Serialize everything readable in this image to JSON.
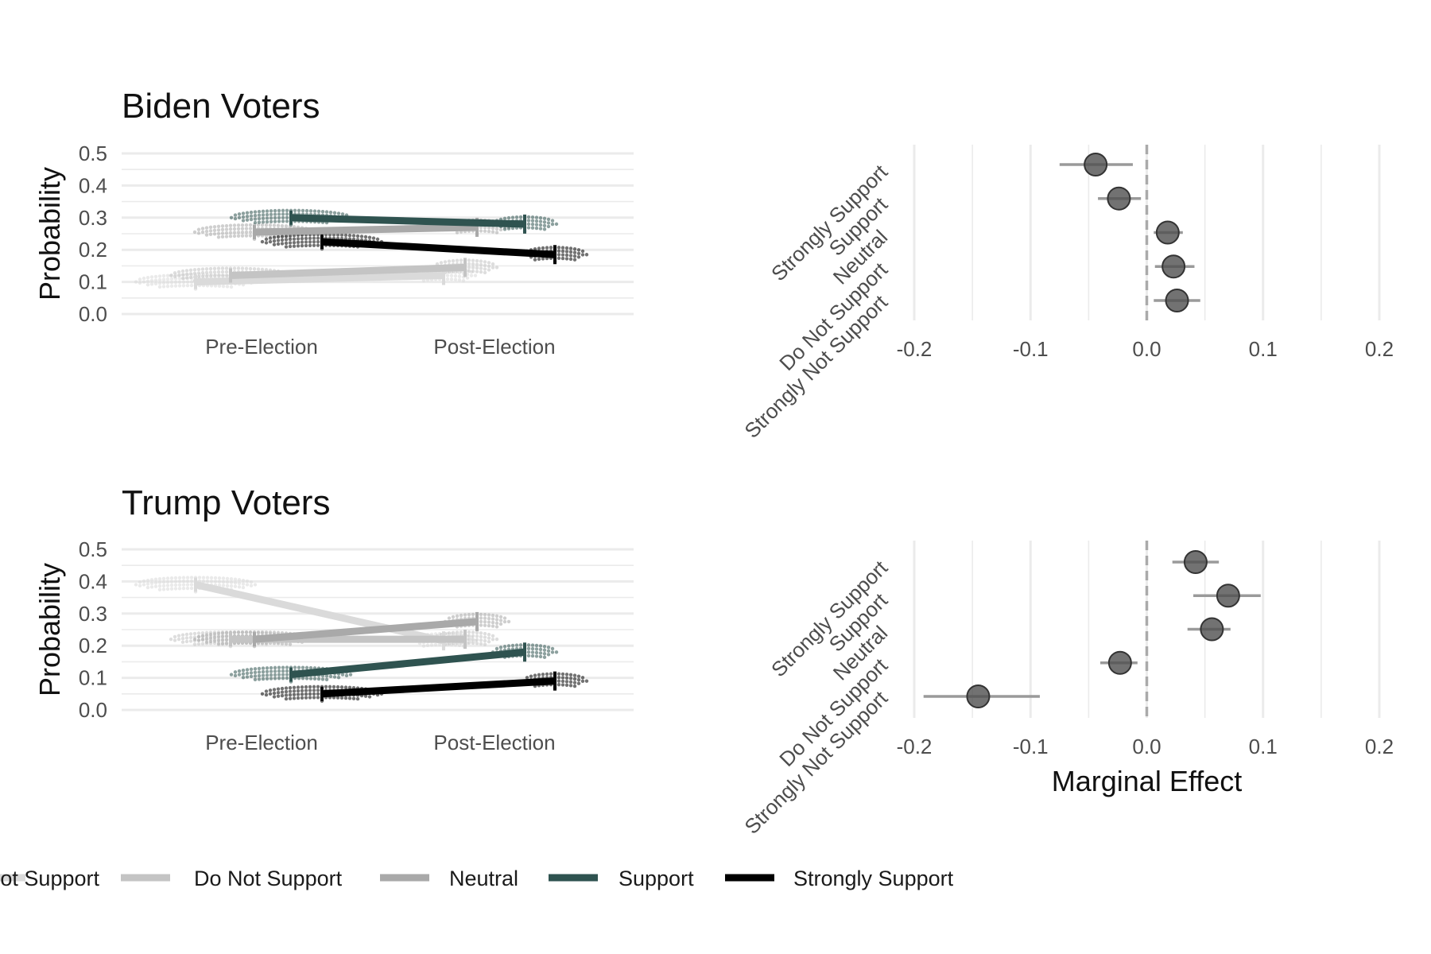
{
  "colors": {
    "Strongly Not Support": "#dadada",
    "Do Not Support": "#c4c4c4",
    "Neutral": "#a9a9a9",
    "Support": "#2f5350",
    "Strongly Support": "#000000",
    "grid": "#ebebeb",
    "point_fill": "#4f4f4f",
    "ci_line": "#9a9a9a",
    "zero_line": "#aaaaaa"
  },
  "legend": {
    "items": [
      {
        "label": "Strongly Not Support"
      },
      {
        "label": "Do Not Support"
      },
      {
        "label": "Neutral"
      },
      {
        "label": "Support"
      },
      {
        "label": "Strongly Support"
      }
    ]
  },
  "chart_data": [
    {
      "type": "line",
      "panel": "biden-probability",
      "title": "Biden Voters",
      "xlabel": "",
      "ylabel": "Probability",
      "categories": [
        "Pre-Election",
        "Post-Election"
      ],
      "ylim": [
        0,
        0.5
      ],
      "y_ticks": [
        "0.0",
        "0.1",
        "0.2",
        "0.3",
        "0.4",
        "0.5"
      ],
      "grid": true,
      "series": [
        {
          "name": "Strongly Not Support",
          "values": [
            0.1,
            0.12
          ]
        },
        {
          "name": "Do Not Support",
          "values": [
            0.12,
            0.145
          ]
        },
        {
          "name": "Neutral",
          "values": [
            0.255,
            0.27
          ]
        },
        {
          "name": "Support",
          "values": [
            0.3,
            0.28
          ]
        },
        {
          "name": "Strongly Support",
          "values": [
            0.225,
            0.185
          ]
        }
      ]
    },
    {
      "type": "scatter",
      "panel": "biden-marginal-effect",
      "xlabel": "",
      "ylabel": "",
      "xlim": [
        -0.2,
        0.2
      ],
      "x_ticks": [
        "-0.2",
        "-0.1",
        "0.0",
        "0.1",
        "0.2"
      ],
      "categories": [
        "Strongly Support",
        "Support",
        "Neutral",
        "Do Not Support",
        "Strongly Not Support"
      ],
      "estimates": [
        -0.044,
        -0.024,
        0.018,
        0.023,
        0.026
      ],
      "ci_low": [
        -0.075,
        -0.042,
        0.006,
        0.007,
        0.006
      ],
      "ci_high": [
        -0.012,
        -0.005,
        0.031,
        0.041,
        0.046
      ]
    },
    {
      "type": "line",
      "panel": "trump-probability",
      "title": "Trump Voters",
      "xlabel": "",
      "ylabel": "Probability",
      "categories": [
        "Pre-Election",
        "Post-Election"
      ],
      "ylim": [
        0,
        0.5
      ],
      "y_ticks": [
        "0.0",
        "0.1",
        "0.2",
        "0.3",
        "0.4",
        "0.5"
      ],
      "grid": true,
      "series": [
        {
          "name": "Strongly Not Support",
          "values": [
            0.39,
            0.215
          ]
        },
        {
          "name": "Do Not Support",
          "values": [
            0.22,
            0.22
          ]
        },
        {
          "name": "Neutral",
          "values": [
            0.22,
            0.275
          ]
        },
        {
          "name": "Support",
          "values": [
            0.11,
            0.18
          ]
        },
        {
          "name": "Strongly Support",
          "values": [
            0.05,
            0.09
          ]
        }
      ]
    },
    {
      "type": "scatter",
      "panel": "trump-marginal-effect",
      "xlabel": "Marginal Effect",
      "ylabel": "",
      "xlim": [
        -0.2,
        0.2
      ],
      "x_ticks": [
        "-0.2",
        "-0.1",
        "0.0",
        "0.1",
        "0.2"
      ],
      "categories": [
        "Strongly Support",
        "Support",
        "Neutral",
        "Do Not Support",
        "Strongly Not Support"
      ],
      "estimates": [
        0.042,
        0.07,
        0.056,
        -0.023,
        -0.145
      ],
      "ci_low": [
        0.022,
        0.04,
        0.035,
        -0.04,
        -0.192
      ],
      "ci_high": [
        0.062,
        0.098,
        0.072,
        -0.008,
        -0.092
      ]
    }
  ]
}
